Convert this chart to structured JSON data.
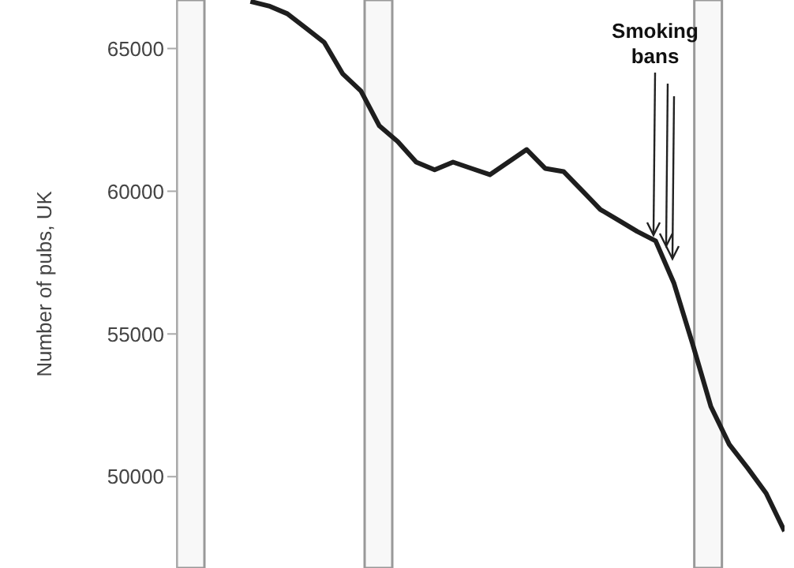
{
  "chart_data": {
    "type": "line",
    "ylabel": "Number of pubs, UK",
    "categories": [
      null,
      null,
      null,
      null,
      null,
      null,
      null,
      null,
      null,
      null,
      null,
      null,
      null,
      null,
      null,
      null,
      null,
      null,
      null,
      null,
      null,
      null,
      null,
      null,
      null,
      null,
      null,
      null,
      null,
      null,
      null,
      null,
      null,
      null
    ],
    "series": [
      {
        "color": "#1e1e1e",
        "values": [
          null,
          null,
          null,
          null,
          66650,
          66490,
          66220,
          65720,
          65220,
          64120,
          63510,
          62290,
          61740,
          61020,
          60750,
          61020,
          60800,
          60580,
          61020,
          61460,
          60800,
          60690,
          60030,
          59360,
          58980,
          58590,
          58260,
          56770,
          54670,
          52460,
          51130,
          50300,
          49420,
          48090
        ]
      }
    ],
    "ylim": [
      46800,
      66700
    ],
    "yticks": [
      50000,
      55000,
      60000,
      65000
    ],
    "marker": "none",
    "line_style": "solid",
    "tick_labels": "y",
    "annotations": [
      "Smoking bans"
    ]
  }
}
